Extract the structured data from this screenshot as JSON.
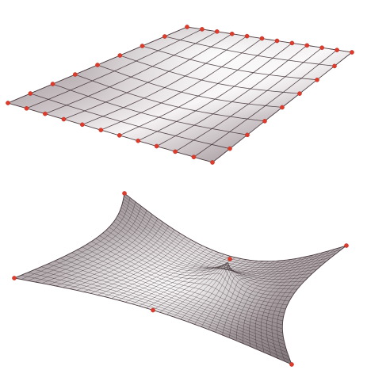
{
  "figure": {
    "panels": [
      {
        "name": "planar-mesh",
        "grid_divisions": [
          11,
          8
        ],
        "control_points_per_edge": [
          11,
          8
        ],
        "surface_color": "#a89ea3",
        "highlight_color": "#f6f3f4",
        "mesh_color": "#3e2e32",
        "point_color": "#e03a2a"
      },
      {
        "name": "tensile-surface",
        "grid_divisions": [
          40,
          30
        ],
        "anchor_points": 6,
        "surface_color": "#8e8489",
        "highlight_color": "#ffffff",
        "mesh_color": "#3a2c30",
        "point_color": "#e03a2a"
      }
    ]
  }
}
